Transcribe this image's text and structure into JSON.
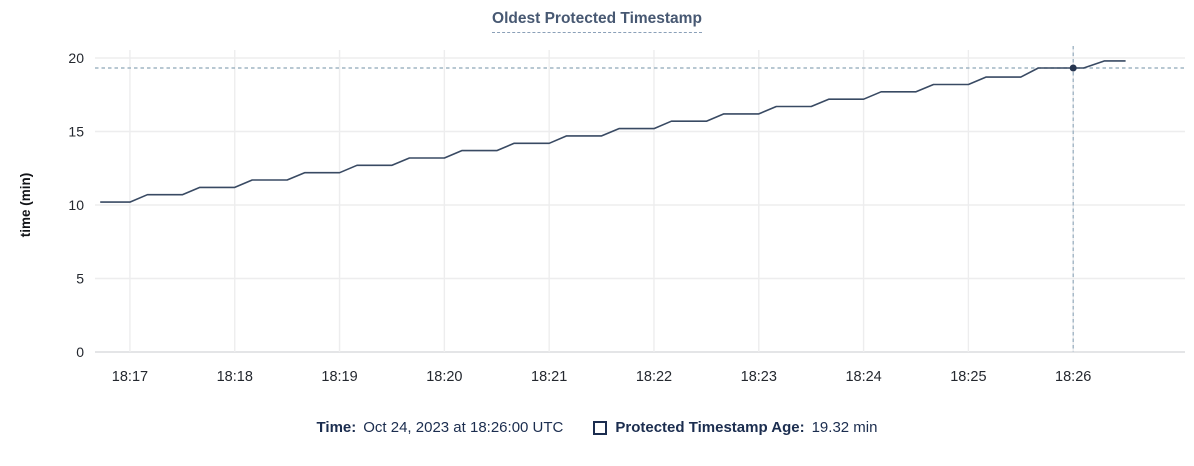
{
  "title": "Oldest Protected Timestamp",
  "colors": {
    "background": "#ffffff",
    "title": "#475872",
    "title_underline": "#8ba0b8",
    "line": "#394a63",
    "dot": "#263550",
    "grid": "#ededee",
    "axis_line": "#e4e5e7",
    "crosshair": "#a0b5c4",
    "tick_text": "#24282f",
    "axis_label_text": "#121418",
    "legend_text": "#1b2d4f"
  },
  "chart_data": {
    "type": "line",
    "title": "Oldest Protected Timestamp",
    "xlabel": "",
    "ylabel": "time (min)",
    "ylim": [
      0,
      20
    ],
    "yticks": [
      0,
      5,
      10,
      15,
      20
    ],
    "xticks": [
      "18:17",
      "18:18",
      "18:19",
      "18:20",
      "18:21",
      "18:22",
      "18:23",
      "18:24",
      "18:25",
      "18:26"
    ],
    "x_domain": [
      "18:16:40",
      "18:27:04"
    ],
    "grid": true,
    "legend_position": "bottom",
    "series": [
      {
        "name": "Protected Timestamp Age",
        "points": [
          [
            "18:16:43",
            10.2
          ],
          [
            "18:16:50",
            10.2
          ],
          [
            "18:17:00",
            10.2
          ],
          [
            "18:17:10",
            10.7
          ],
          [
            "18:17:20",
            10.7
          ],
          [
            "18:17:30",
            10.7
          ],
          [
            "18:17:40",
            11.2
          ],
          [
            "18:17:50",
            11.2
          ],
          [
            "18:18:00",
            11.2
          ],
          [
            "18:18:10",
            11.7
          ],
          [
            "18:18:20",
            11.7
          ],
          [
            "18:18:30",
            11.7
          ],
          [
            "18:18:40",
            12.2
          ],
          [
            "18:18:50",
            12.2
          ],
          [
            "18:19:00",
            12.2
          ],
          [
            "18:19:10",
            12.7
          ],
          [
            "18:19:20",
            12.7
          ],
          [
            "18:19:30",
            12.7
          ],
          [
            "18:19:40",
            13.2
          ],
          [
            "18:19:50",
            13.2
          ],
          [
            "18:20:00",
            13.2
          ],
          [
            "18:20:10",
            13.7
          ],
          [
            "18:20:20",
            13.7
          ],
          [
            "18:20:30",
            13.7
          ],
          [
            "18:20:40",
            14.2
          ],
          [
            "18:20:50",
            14.2
          ],
          [
            "18:21:00",
            14.2
          ],
          [
            "18:21:10",
            14.7
          ],
          [
            "18:21:20",
            14.7
          ],
          [
            "18:21:30",
            14.7
          ],
          [
            "18:21:40",
            15.2
          ],
          [
            "18:21:50",
            15.2
          ],
          [
            "18:22:00",
            15.2
          ],
          [
            "18:22:10",
            15.7
          ],
          [
            "18:22:20",
            15.7
          ],
          [
            "18:22:30",
            15.7
          ],
          [
            "18:22:40",
            16.2
          ],
          [
            "18:22:50",
            16.2
          ],
          [
            "18:23:00",
            16.2
          ],
          [
            "18:23:10",
            16.7
          ],
          [
            "18:23:20",
            16.7
          ],
          [
            "18:23:30",
            16.7
          ],
          [
            "18:23:40",
            17.2
          ],
          [
            "18:23:50",
            17.2
          ],
          [
            "18:24:00",
            17.2
          ],
          [
            "18:24:10",
            17.7
          ],
          [
            "18:24:20",
            17.7
          ],
          [
            "18:24:30",
            17.7
          ],
          [
            "18:24:40",
            18.2
          ],
          [
            "18:24:50",
            18.2
          ],
          [
            "18:25:00",
            18.2
          ],
          [
            "18:25:10",
            18.7
          ],
          [
            "18:25:20",
            18.7
          ],
          [
            "18:25:30",
            18.7
          ],
          [
            "18:25:40",
            19.32
          ],
          [
            "18:25:50",
            19.32
          ],
          [
            "18:26:00",
            19.32
          ],
          [
            "18:26:06",
            19.32
          ],
          [
            "18:26:18",
            19.8
          ],
          [
            "18:26:30",
            19.8
          ]
        ]
      }
    ],
    "hover": {
      "x": "18:26:00",
      "y": 19.32
    }
  },
  "legend": {
    "time_label": "Time:",
    "time_value": "Oct 24, 2023 at 18:26:00 UTC",
    "series_label": "Protected Timestamp Age:",
    "series_value": "19.32 min"
  }
}
